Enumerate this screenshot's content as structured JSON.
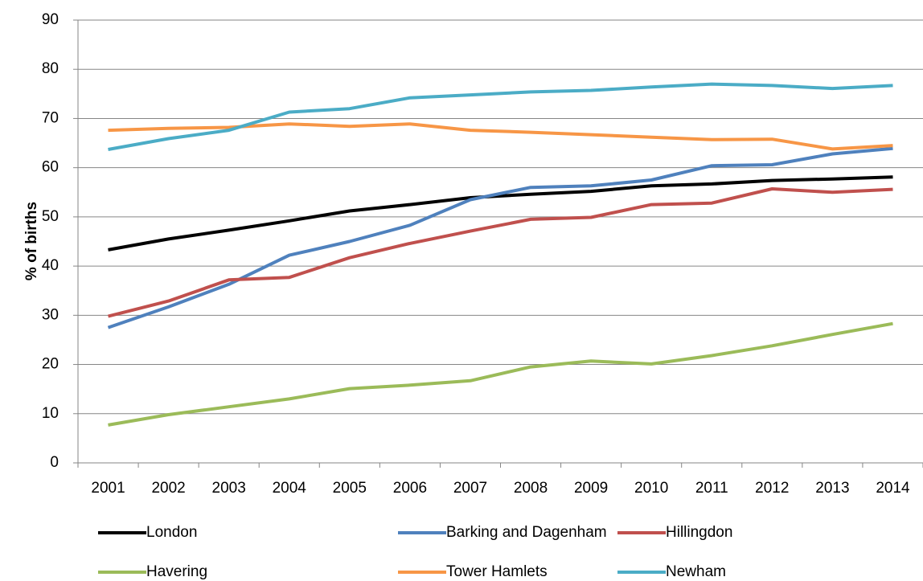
{
  "chart_data": {
    "type": "line",
    "y_label": "% of births",
    "categories": [
      "2001",
      "2002",
      "2003",
      "2004",
      "2005",
      "2006",
      "2007",
      "2008",
      "2009",
      "2010",
      "2011",
      "2012",
      "2013",
      "2014"
    ],
    "series": [
      {
        "name": "London",
        "color": "#000000",
        "values": [
          43.3,
          45.5,
          47.3,
          49.2,
          51.2,
          52.5,
          53.9,
          54.6,
          55.2,
          56.3,
          56.7,
          57.4,
          57.7,
          58.1
        ]
      },
      {
        "name": "Barking and Dagenham",
        "color": "#4f81bd",
        "values": [
          27.5,
          31.7,
          36.3,
          42.2,
          45.0,
          48.3,
          53.5,
          56.0,
          56.3,
          57.5,
          60.4,
          60.6,
          62.8,
          63.9
        ]
      },
      {
        "name": "Hillingdon",
        "color": "#c0504d",
        "values": [
          29.8,
          32.9,
          37.2,
          37.7,
          41.7,
          44.6,
          47.1,
          49.5,
          49.9,
          52.5,
          52.8,
          55.7,
          55.0,
          55.6
        ]
      },
      {
        "name": "Havering",
        "color": "#9bbb59",
        "values": [
          7.7,
          9.8,
          11.4,
          13.0,
          15.1,
          15.8,
          16.7,
          19.5,
          20.7,
          20.1,
          21.8,
          23.8,
          26.1,
          28.3
        ]
      },
      {
        "name": "Tower Hamlets",
        "color": "#f79646",
        "values": [
          67.6,
          68.0,
          68.2,
          68.9,
          68.4,
          68.9,
          67.6,
          67.2,
          66.7,
          66.2,
          65.7,
          65.8,
          63.8,
          64.5
        ]
      },
      {
        "name": "Newham",
        "color": "#4bacc6",
        "values": [
          63.7,
          65.9,
          67.6,
          71.3,
          72.0,
          74.2,
          74.8,
          75.4,
          75.7,
          76.4,
          77.0,
          76.7,
          76.1,
          76.7
        ]
      }
    ],
    "ylim": [
      0,
      90
    ],
    "yticks": [
      0,
      10,
      20,
      30,
      40,
      50,
      60,
      70,
      80,
      90
    ],
    "grid": true,
    "legend": "bottom"
  }
}
